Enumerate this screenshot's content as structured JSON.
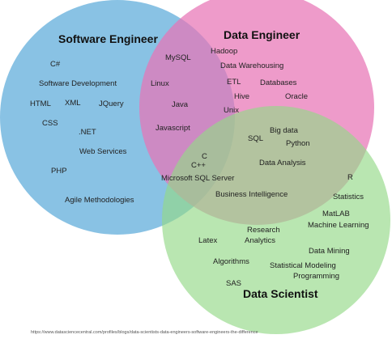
{
  "colors": {
    "software_engineer": "#6fb4de",
    "data_engineer": "#e875b6",
    "data_scientist": "#93d987"
  },
  "circles": {
    "software_engineer": {
      "title": "Software Engineer",
      "items": [
        "C#",
        "Software Development",
        "HTML",
        "XML",
        "JQuery",
        "CSS",
        ".NET",
        "Web Services",
        "PHP",
        "Agile Methodologies"
      ]
    },
    "data_engineer": {
      "title": "Data Engineer",
      "items": [
        "Hadoop",
        "Data Warehousing",
        "ETL",
        "Databases",
        "Hive",
        "Oracle",
        "Unix"
      ]
    },
    "data_scientist": {
      "title": "Data Scientist",
      "items": [
        "R",
        "Statistics",
        "MatLAB",
        "Machine Learning",
        "Latex",
        "Research",
        "Analytics",
        "Data Mining",
        "Algorithms",
        "Statistical Modeling",
        "Programming",
        "SAS"
      ]
    }
  },
  "overlaps": {
    "software_and_data_engineer": [
      "MySQL",
      "Linux",
      "Java",
      "Javascript"
    ],
    "data_engineer_and_data_scientist": [
      "SQL",
      "Big data",
      "Python",
      "Data Analysis"
    ],
    "all_three": [
      "C",
      "C++",
      "Microsoft SQL Server",
      "Business Intelligence"
    ]
  },
  "source": "https://www.datasciencecentral.com/profiles/blogs/data-scientists-data-engineers-software-engineers-the-difference"
}
